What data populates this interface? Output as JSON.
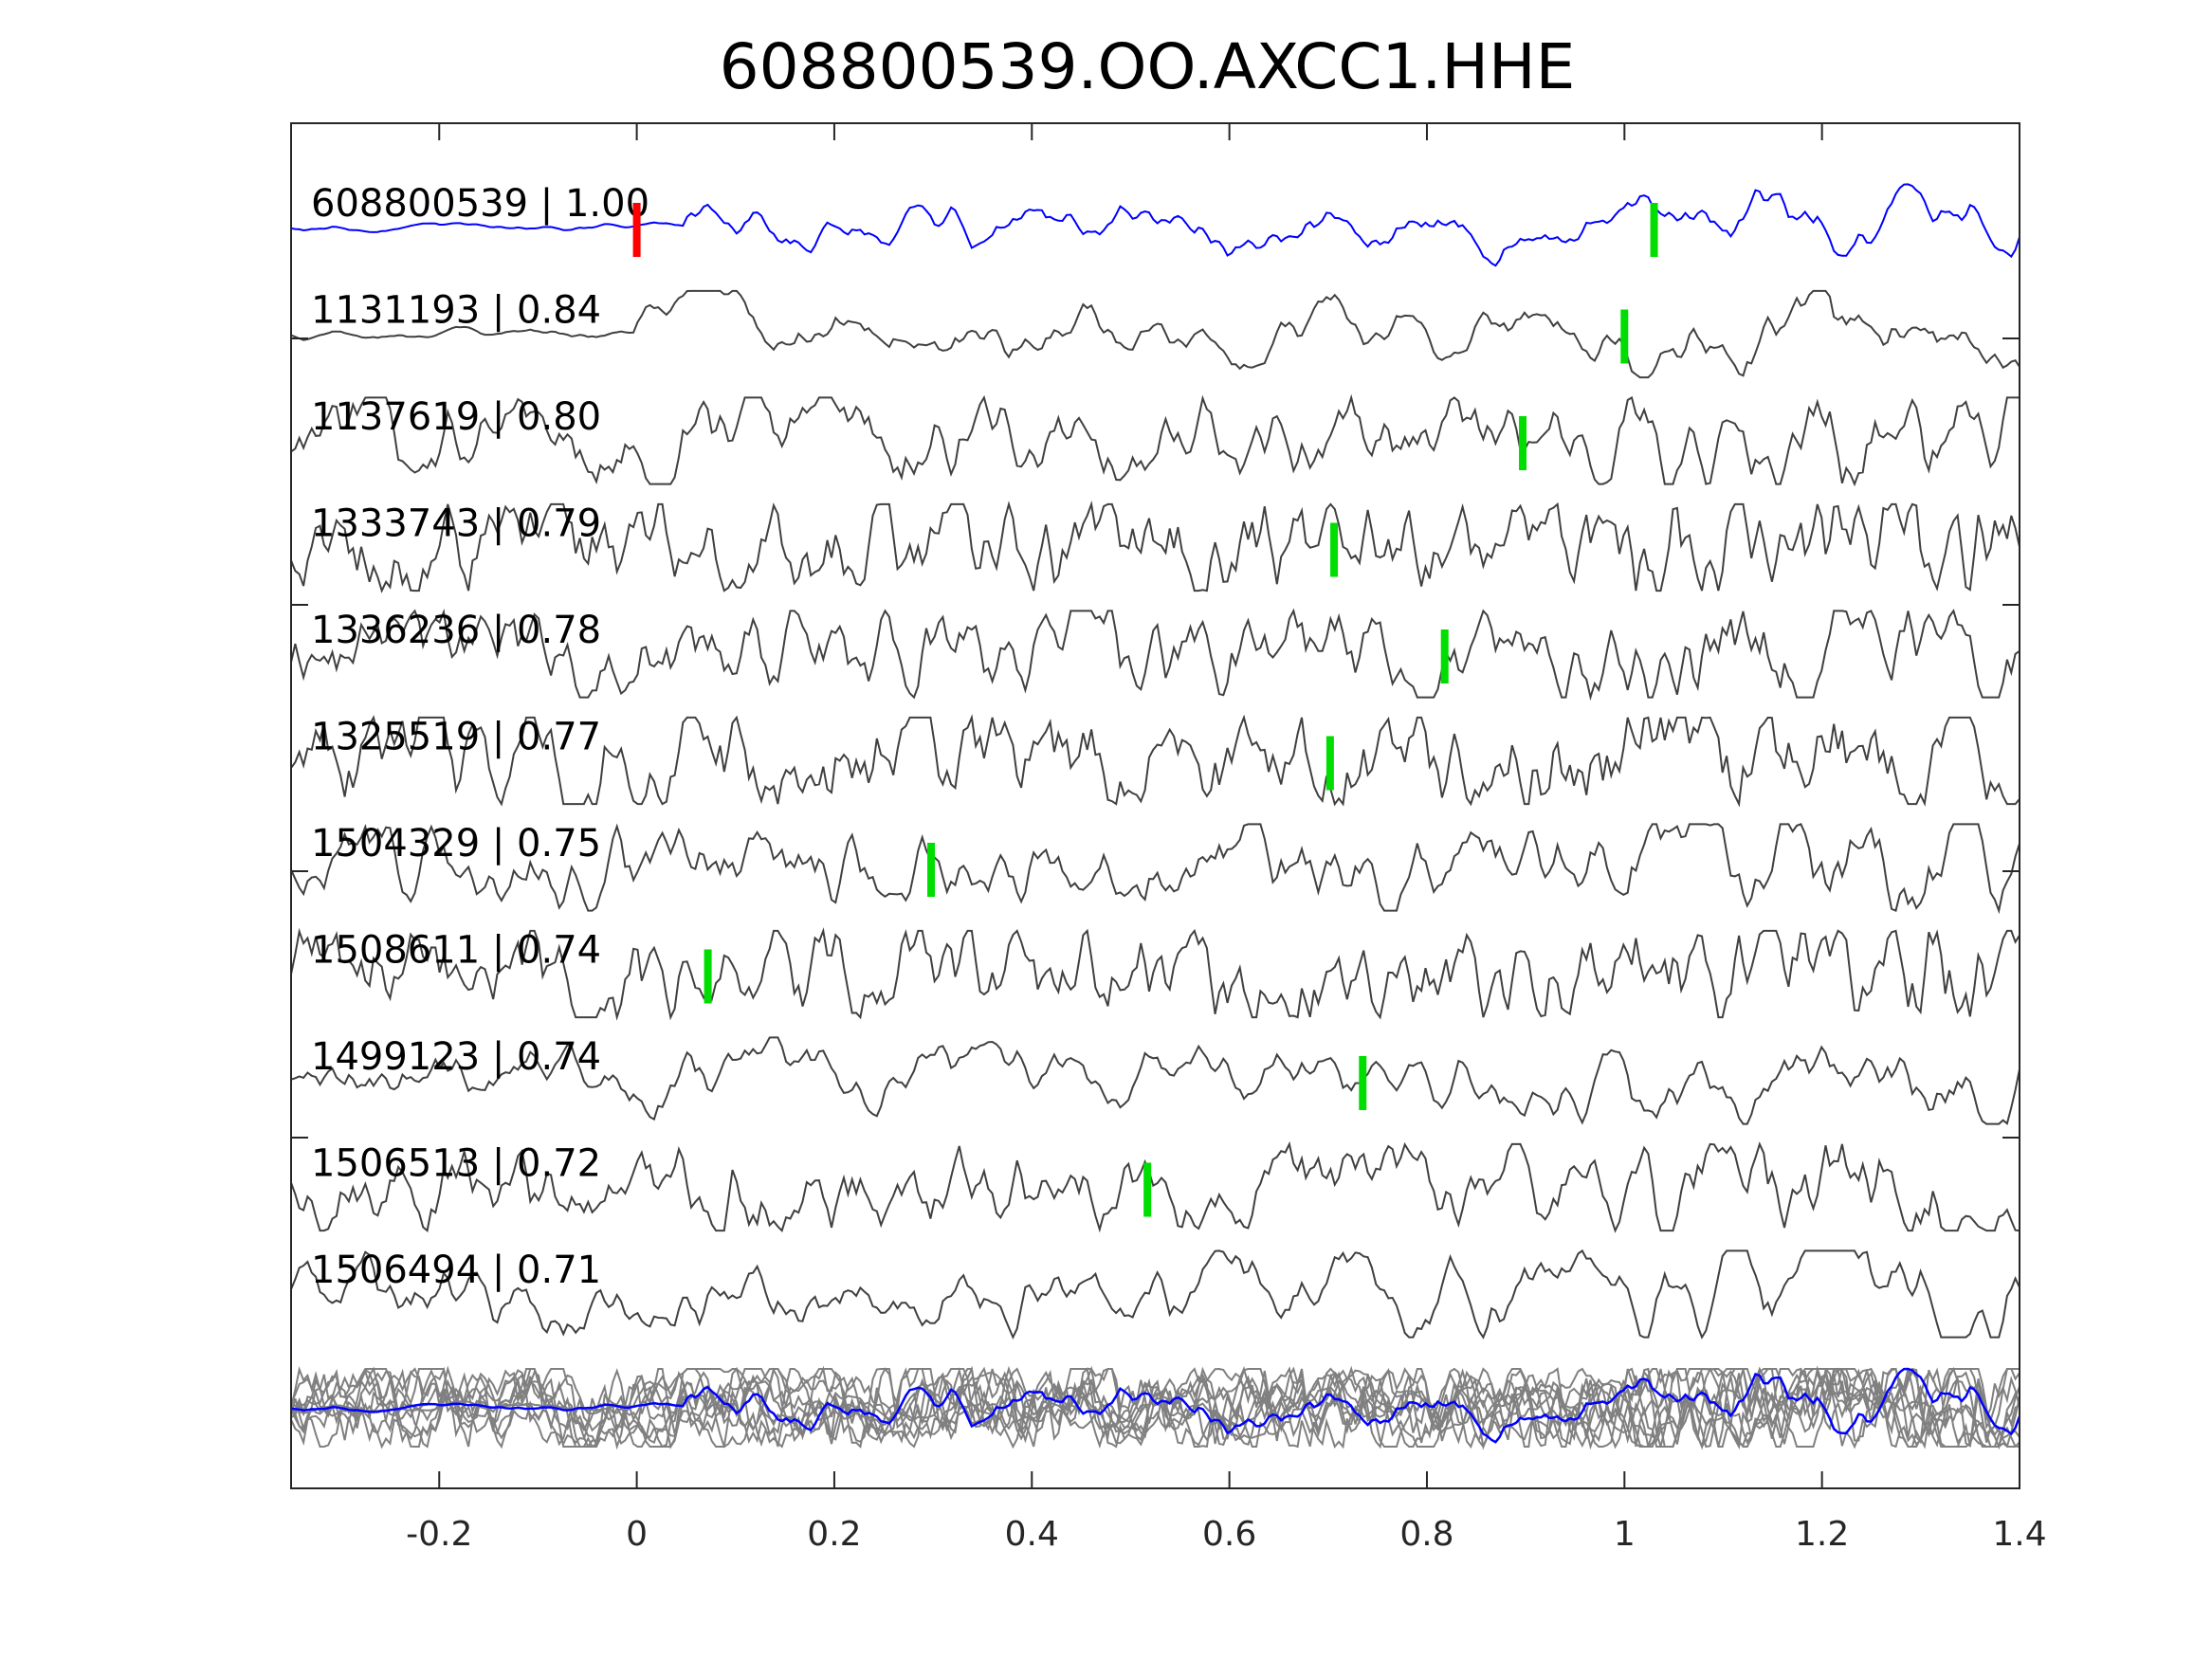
{
  "chart_data": {
    "type": "line",
    "title": "608800539.OO.AXCC1.HHE",
    "xlabel": "",
    "ylabel": "",
    "xlim": [
      -0.35,
      1.4
    ],
    "xticks": [
      -0.2,
      0,
      0.2,
      0.4,
      0.6,
      0.8,
      1,
      1.2,
      1.4
    ],
    "xtick_labels": [
      "-0.2",
      "0",
      "0.2",
      "0.4",
      "0.6",
      "0.8",
      "1",
      "1.2",
      "1.4"
    ],
    "grid": false,
    "colors": {
      "reference": "#0000ff",
      "trace": "#404040",
      "stack": "#808080",
      "reference_pick": "#ff0000",
      "pick": "#00dd00"
    },
    "traces": [
      {
        "id": "608800539",
        "cc": "1.00",
        "label": "608800539 | 1.00",
        "reference": true,
        "ref_pick": 0.0,
        "pick": 1.03
      },
      {
        "id": "1131193",
        "cc": "0.84",
        "label": "1131193 | 0.84",
        "pick": 1.0
      },
      {
        "id": "1137619",
        "cc": "0.80",
        "label": "1137619 | 0.80",
        "pick": 0.897
      },
      {
        "id": "1333743",
        "cc": "0.79",
        "label": "1333743 | 0.79",
        "pick": 0.706
      },
      {
        "id": "1336236",
        "cc": "0.78",
        "label": "1336236 | 0.78",
        "pick": 0.818
      },
      {
        "id": "1325519",
        "cc": "0.77",
        "label": "1325519 | 0.77",
        "pick": 0.702
      },
      {
        "id": "1504329",
        "cc": "0.75",
        "label": "1504329 | 0.75",
        "pick": 0.298
      },
      {
        "id": "1508611",
        "cc": "0.74",
        "label": "1508611 | 0.74",
        "pick": 0.072
      },
      {
        "id": "1499123",
        "cc": "0.74",
        "label": "1499123 | 0.74",
        "pick": 0.735
      },
      {
        "id": "1506513",
        "cc": "0.72",
        "label": "1506513 | 0.72",
        "pick": 0.517
      },
      {
        "id": "1506494",
        "cc": "0.71",
        "label": "1506494 | 0.71",
        "pick": null
      }
    ]
  }
}
